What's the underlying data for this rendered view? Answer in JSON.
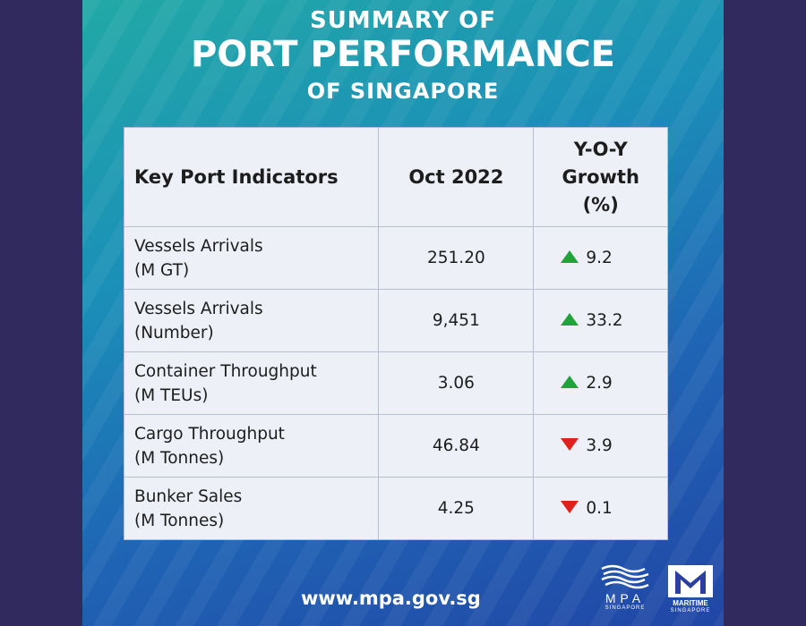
{
  "title": {
    "line1": "SUMMARY OF",
    "line2": "PORT PERFORMANCE",
    "line3": "OF SINGAPORE"
  },
  "table": {
    "headers": {
      "indicator": "Key Port Indicators",
      "period": "Oct 2022",
      "growth_line1": "Y-O-Y",
      "growth_line2": "Growth",
      "growth_line3": "(%)"
    },
    "rows": [
      {
        "name": "Vessels Arrivals",
        "unit": "(M GT)",
        "value": "251.20",
        "growth": "9.2",
        "direction": "up"
      },
      {
        "name": "Vessels Arrivals",
        "unit": "(Number)",
        "value": "9,451",
        "growth": "33.2",
        "direction": "up"
      },
      {
        "name": "Container Throughput",
        "unit": "(M TEUs)",
        "value": "3.06",
        "growth": "2.9",
        "direction": "up"
      },
      {
        "name": "Cargo Throughput",
        "unit": "(M Tonnes)",
        "value": "46.84",
        "growth": "3.9",
        "direction": "down"
      },
      {
        "name": "Bunker Sales",
        "unit": "(M Tonnes)",
        "value": "4.25",
        "growth": "0.1",
        "direction": "down"
      }
    ]
  },
  "footer": {
    "website": "www.mpa.gov.sg",
    "logo_mpa_text": "MPA",
    "logo_mpa_subtext": "SINGAPORE",
    "logo_maritime_text": "MARITIME",
    "logo_maritime_subtext": "SINGAPORE"
  },
  "colors": {
    "up_arrow": "#1fa33b",
    "down_arrow": "#e0201a",
    "table_bg": "#edf0f7",
    "frame_bg": "#302a5e"
  },
  "icons": {
    "up": "triangle-up-icon",
    "down": "triangle-down-icon"
  }
}
